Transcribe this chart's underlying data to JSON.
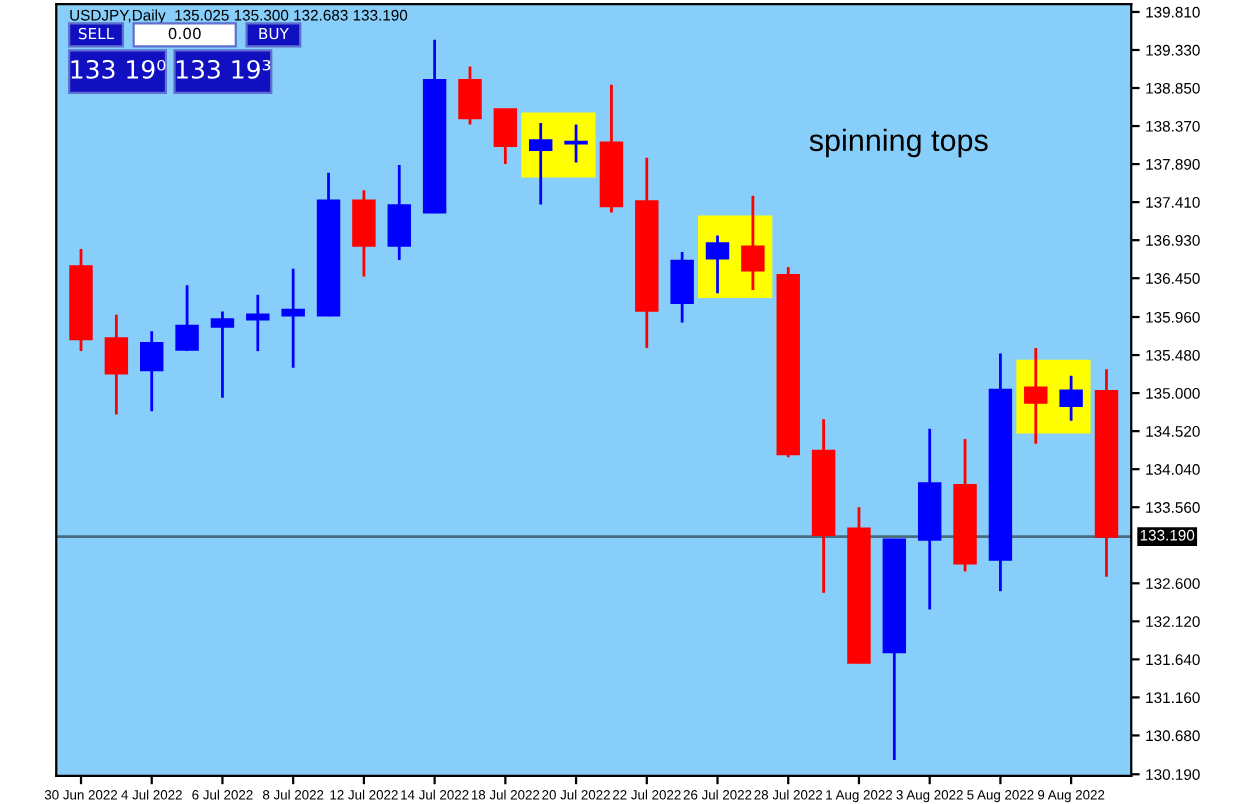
{
  "chart_data": {
    "type": "candlestick",
    "title": "USDJPY,Daily  135.025 135.300 132.683 133.190",
    "categories": [
      "30 Jun 2022",
      null,
      "4 Jul 2022",
      null,
      "6 Jul 2022",
      null,
      "8 Jul 2022",
      null,
      "12 Jul 2022",
      null,
      "14 Jul 2022",
      null,
      "18 Jul 2022",
      null,
      "20 Jul 2022",
      null,
      "22 Jul 2022",
      null,
      "26 Jul 2022",
      null,
      "28 Jul 2022",
      null,
      "1 Aug 2022",
      null,
      "3 Aug 2022",
      null,
      "5 Aug 2022",
      null,
      "9 Aug 2022",
      null
    ],
    "ohlc": [
      [
        136.6,
        136.82,
        135.53,
        135.68
      ],
      [
        135.69,
        135.99,
        134.73,
        135.25
      ],
      [
        135.29,
        135.78,
        134.77,
        135.63
      ],
      [
        135.55,
        136.36,
        135.53,
        135.85
      ],
      [
        135.84,
        136.03,
        134.94,
        135.93
      ],
      [
        135.93,
        136.24,
        135.53,
        135.99
      ],
      [
        135.98,
        136.57,
        135.32,
        136.05
      ],
      [
        135.98,
        137.78,
        135.97,
        137.43
      ],
      [
        137.43,
        137.56,
        136.47,
        136.86
      ],
      [
        136.86,
        137.88,
        136.68,
        137.37
      ],
      [
        137.28,
        139.46,
        137.27,
        138.95
      ],
      [
        138.95,
        139.12,
        138.39,
        138.47
      ],
      [
        138.58,
        138.58,
        137.89,
        138.12
      ],
      [
        138.07,
        138.41,
        137.38,
        138.19
      ],
      [
        138.15,
        138.39,
        137.91,
        138.17
      ],
      [
        138.16,
        138.89,
        137.28,
        137.36
      ],
      [
        137.42,
        137.97,
        135.57,
        136.04
      ],
      [
        136.14,
        136.78,
        135.89,
        136.67
      ],
      [
        136.7,
        136.99,
        136.26,
        136.89
      ],
      [
        136.85,
        137.49,
        136.3,
        136.55
      ],
      [
        136.49,
        136.59,
        134.19,
        134.23
      ],
      [
        134.27,
        134.67,
        132.48,
        133.21
      ],
      [
        133.29,
        133.56,
        131.59,
        131.6
      ],
      [
        131.73,
        133.16,
        130.37,
        133.15
      ],
      [
        133.15,
        134.55,
        132.27,
        133.86
      ],
      [
        133.84,
        134.42,
        132.75,
        132.85
      ],
      [
        132.9,
        135.5,
        132.5,
        135.04
      ],
      [
        135.07,
        135.57,
        134.36,
        134.88
      ],
      [
        134.84,
        135.22,
        134.65,
        135.03
      ],
      [
        135.025,
        135.3,
        132.683,
        133.19
      ]
    ],
    "colors": [
      "#ff0000",
      "#ff0000",
      "#0000ff",
      "#0000ff",
      "#0000ff",
      "#0000ff",
      "#0000ff",
      "#0000ff",
      "#ff0000",
      "#0000ff",
      "#0000ff",
      "#ff0000",
      "#ff0000",
      "#0000ff",
      "#0000ff",
      "#ff0000",
      "#ff0000",
      "#0000ff",
      "#0000ff",
      "#ff0000",
      "#ff0000",
      "#ff0000",
      "#ff0000",
      "#0000ff",
      "#0000ff",
      "#ff0000",
      "#0000ff",
      "#ff0000",
      "#0000ff",
      "#ff0000"
    ],
    "ylim": [
      130.17,
      139.91
    ],
    "yticks": [
      {
        "value": 139.81,
        "label": "139.810"
      },
      {
        "value": 139.33,
        "label": "139.330"
      },
      {
        "value": 138.85,
        "label": "138.850"
      },
      {
        "value": 138.37,
        "label": "138.370"
      },
      {
        "value": 137.89,
        "label": "137.890"
      },
      {
        "value": 137.41,
        "label": "137.410"
      },
      {
        "value": 136.93,
        "label": "136.930"
      },
      {
        "value": 136.45,
        "label": "136.450"
      },
      {
        "value": 135.96,
        "label": "135.960"
      },
      {
        "value": 135.48,
        "label": "135.480"
      },
      {
        "value": 135.0,
        "label": "135.000"
      },
      {
        "value": 134.52,
        "label": "134.520"
      },
      {
        "value": 134.04,
        "label": "134.040"
      },
      {
        "value": 133.56,
        "label": "133.560"
      },
      {
        "value": 132.6,
        "label": "132.600"
      },
      {
        "value": 132.12,
        "label": "132.120"
      },
      {
        "value": 131.64,
        "label": "131.640"
      },
      {
        "value": 131.16,
        "label": "131.160"
      },
      {
        "value": 130.68,
        "label": "130.680"
      },
      {
        "value": 130.19,
        "label": "130.190"
      }
    ],
    "ref_lines": [
      {
        "axis": "y",
        "value": 133.19,
        "label": "133.190",
        "color": "#4a6a80"
      }
    ],
    "annotations": [
      "spinning tops",
      "SELL",
      "0.00",
      "BUY",
      "133 19⁰",
      "133 19³"
    ],
    "grid": false,
    "legend": false
  }
}
